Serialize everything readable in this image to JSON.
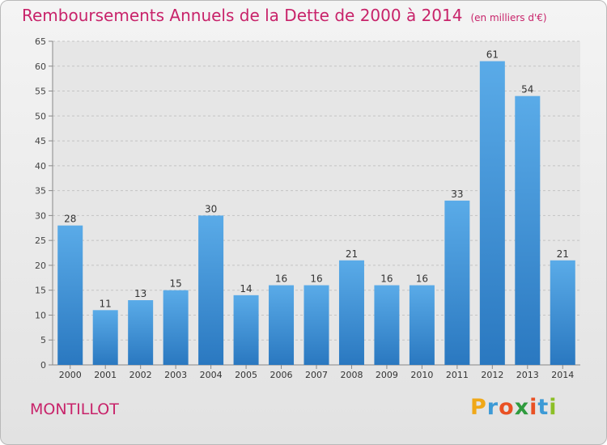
{
  "chart_data": {
    "type": "bar",
    "title": "Remboursements Annuels de la Dette de 2000 à 2014",
    "subtitle": "(en milliers d'€)",
    "categories": [
      "2000",
      "2001",
      "2002",
      "2003",
      "2004",
      "2005",
      "2006",
      "2007",
      "2008",
      "2009",
      "2010",
      "2011",
      "2012",
      "2013",
      "2014"
    ],
    "values": [
      28,
      11,
      13,
      15,
      30,
      14,
      16,
      16,
      21,
      16,
      16,
      33,
      61,
      54,
      21
    ],
    "ylim": [
      0,
      65
    ],
    "yticks": [
      0,
      5,
      10,
      15,
      20,
      25,
      30,
      35,
      40,
      45,
      50,
      55,
      60,
      65
    ],
    "grid": true,
    "bar_color": "#3a8fd9"
  },
  "commune": "MONTILLOT",
  "logo": {
    "letters": [
      "P",
      "r",
      "o",
      "x",
      "i",
      "t",
      "i"
    ],
    "colors": [
      "#f0a818",
      "#3d9ad6",
      "#e95124",
      "#2f9b3e",
      "#e95124",
      "#3d9ad6",
      "#8cbf26"
    ]
  }
}
